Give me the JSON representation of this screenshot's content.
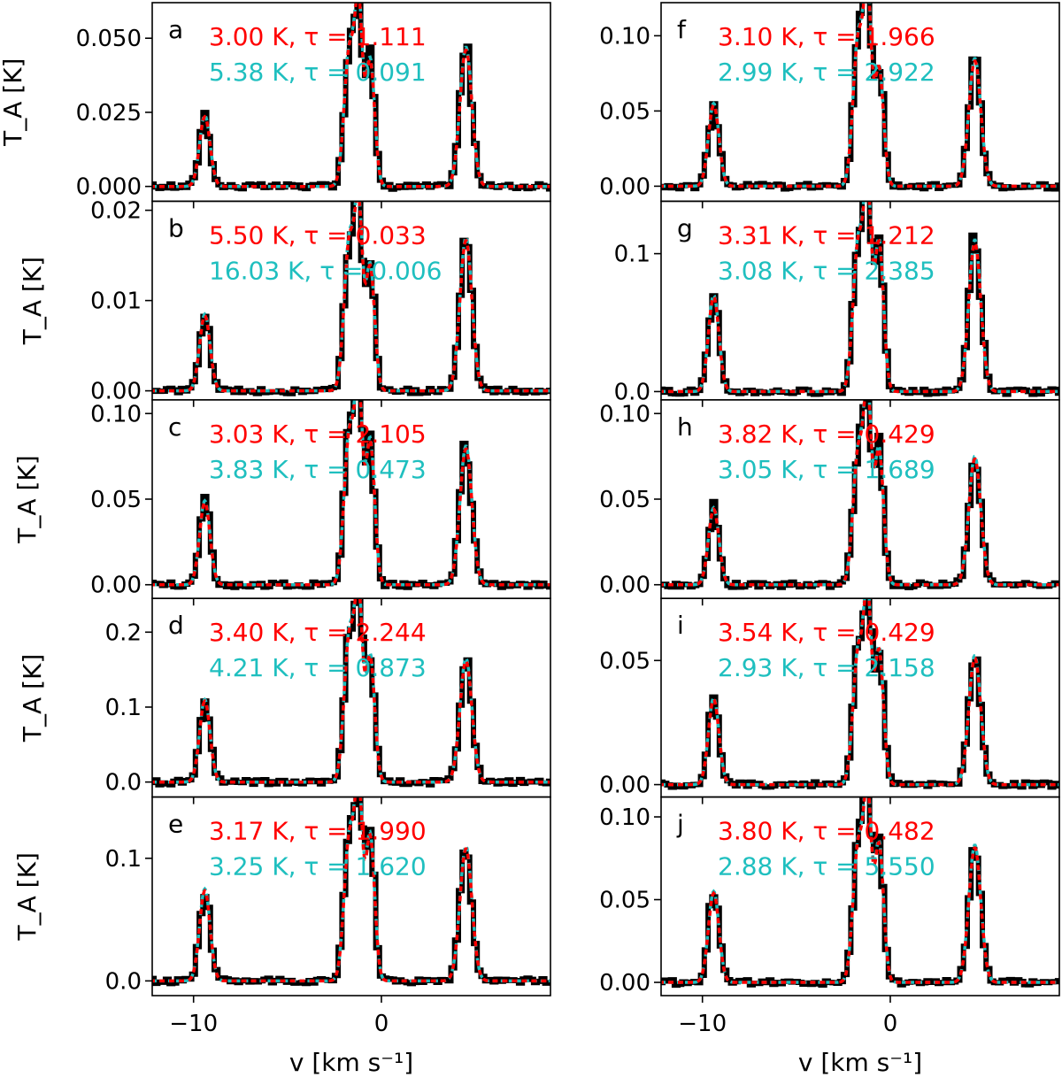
{
  "figure": {
    "colors": {
      "observed": "#000000",
      "model_red": "#ff0000",
      "model_cyan": "#1fbfbf"
    },
    "xlabel": "v [km s⁻¹]",
    "ylabel": "T_A [K]",
    "xlim": [
      -12.2,
      9.0
    ],
    "x_ticks": [
      -10,
      0
    ],
    "x_tick_labels": [
      "−10",
      "0"
    ]
  },
  "chart_data": [
    {
      "type": "line",
      "panel": "a",
      "column": 0,
      "row": 0,
      "ylim": [
        -0.005,
        0.062
      ],
      "y_ticks": [
        0,
        0.025,
        0.05
      ],
      "y_tick_labels": [
        "0.000",
        "0.025",
        "0.050"
      ],
      "amplitudes": [
        0.024,
        0.047,
        0.055,
        0.043,
        0.047
      ],
      "series": [
        {
          "name": "red",
          "label": "3.00 K,  τ = 1.111",
          "Tex_K": 3.0,
          "tau": 1.111
        },
        {
          "name": "cyan",
          "label": "5.38 K,  τ = 0.091",
          "Tex_K": 5.38,
          "tau": 0.091
        }
      ]
    },
    {
      "type": "line",
      "panel": "b",
      "column": 0,
      "row": 1,
      "ylim": [
        -0.001,
        0.021
      ],
      "y_ticks": [
        0,
        0.01,
        0.02
      ],
      "y_tick_labels": [
        "0.00",
        "0.01",
        "0.02"
      ],
      "amplitudes": [
        0.0085,
        0.017,
        0.018,
        0.014,
        0.017
      ],
      "series": [
        {
          "name": "red",
          "label": "5.50 K,  τ = 0.033",
          "Tex_K": 5.5,
          "tau": 0.033
        },
        {
          "name": "cyan",
          "label": "16.03 K,  τ = 0.006",
          "Tex_K": 16.03,
          "tau": 0.006
        }
      ]
    },
    {
      "type": "line",
      "panel": "c",
      "column": 0,
      "row": 2,
      "ylim": [
        -0.008,
        0.108
      ],
      "y_ticks": [
        0,
        0.05,
        0.1
      ],
      "y_tick_labels": [
        "0.00",
        "0.05",
        "0.10"
      ],
      "amplitudes": [
        0.049,
        0.09,
        0.1,
        0.085,
        0.081
      ],
      "series": [
        {
          "name": "red",
          "label": "3.03 K,  τ = 2.105",
          "Tex_K": 3.03,
          "tau": 2.105
        },
        {
          "name": "cyan",
          "label": "3.83 K,  τ = 0.473",
          "Tex_K": 3.83,
          "tau": 0.473
        }
      ]
    },
    {
      "type": "line",
      "panel": "d",
      "column": 0,
      "row": 3,
      "ylim": [
        -0.02,
        0.245
      ],
      "y_ticks": [
        0,
        0.1,
        0.2
      ],
      "y_tick_labels": [
        "0.0",
        "0.1",
        "0.2"
      ],
      "amplitudes": [
        0.11,
        0.2,
        0.22,
        0.17,
        0.165
      ],
      "series": [
        {
          "name": "red",
          "label": "3.40 K,  τ = 2.244",
          "Tex_K": 3.4,
          "tau": 2.244
        },
        {
          "name": "cyan",
          "label": "4.21 K,  τ = 0.873",
          "Tex_K": 4.21,
          "tau": 0.873
        }
      ]
    },
    {
      "type": "line",
      "panel": "e",
      "column": 0,
      "row": 4,
      "ylim": [
        -0.012,
        0.15
      ],
      "y_ticks": [
        0,
        0.1
      ],
      "y_tick_labels": [
        "0.0",
        "0.1"
      ],
      "amplitudes": [
        0.075,
        0.12,
        0.14,
        0.12,
        0.11
      ],
      "series": [
        {
          "name": "red",
          "label": "3.17 K,  τ = 1.990",
          "Tex_K": 3.17,
          "tau": 1.99
        },
        {
          "name": "cyan",
          "label": "3.25 K,  τ = 1.620",
          "Tex_K": 3.25,
          "tau": 1.62
        }
      ]
    },
    {
      "type": "line",
      "panel": "f",
      "column": 1,
      "row": 0,
      "ylim": [
        -0.01,
        0.122
      ],
      "y_ticks": [
        0,
        0.05,
        0.1
      ],
      "y_tick_labels": [
        "0.00",
        "0.05",
        "0.10"
      ],
      "amplitudes": [
        0.055,
        0.1,
        0.115,
        0.08,
        0.085
      ],
      "series": [
        {
          "name": "red",
          "label": "3.10 K,  τ = 1.966",
          "Tex_K": 3.1,
          "tau": 1.966
        },
        {
          "name": "cyan",
          "label": "2.99 K,  τ = 2.922",
          "Tex_K": 2.99,
          "tau": 2.922
        }
      ]
    },
    {
      "type": "line",
      "panel": "g",
      "column": 1,
      "row": 1,
      "ylim": [
        -0.006,
        0.138
      ],
      "y_ticks": [
        0,
        0.1
      ],
      "y_tick_labels": [
        "0.0",
        "0.1"
      ],
      "amplitudes": [
        0.07,
        0.11,
        0.13,
        0.11,
        0.11
      ],
      "series": [
        {
          "name": "red",
          "label": "3.31 K,  τ = 1.212",
          "Tex_K": 3.31,
          "tau": 1.212
        },
        {
          "name": "cyan",
          "label": "3.08 K,  τ = 2.385",
          "Tex_K": 3.08,
          "tau": 2.385
        }
      ]
    },
    {
      "type": "line",
      "panel": "h",
      "column": 1,
      "row": 2,
      "ylim": [
        -0.008,
        0.108
      ],
      "y_ticks": [
        0,
        0.05,
        0.1
      ],
      "y_tick_labels": [
        "0.00",
        "0.05",
        "0.10"
      ],
      "amplitudes": [
        0.045,
        0.08,
        0.1,
        0.08,
        0.075
      ],
      "series": [
        {
          "name": "red",
          "label": "3.82 K,  τ = 0.429",
          "Tex_K": 3.82,
          "tau": 0.429
        },
        {
          "name": "cyan",
          "label": "3.05 K,  τ = 1.689",
          "Tex_K": 3.05,
          "tau": 1.689
        }
      ]
    },
    {
      "type": "line",
      "panel": "i",
      "column": 1,
      "row": 3,
      "ylim": [
        -0.005,
        0.075
      ],
      "y_ticks": [
        0,
        0.05
      ],
      "y_tick_labels": [
        "0.00",
        "0.05"
      ],
      "amplitudes": [
        0.035,
        0.055,
        0.068,
        0.055,
        0.052
      ],
      "series": [
        {
          "name": "red",
          "label": "3.54 K,  τ = 0.429",
          "Tex_K": 3.54,
          "tau": 0.429
        },
        {
          "name": "cyan",
          "label": "2.93 K,  τ = 2.158",
          "Tex_K": 2.93,
          "tau": 2.158
        }
      ]
    },
    {
      "type": "line",
      "panel": "j",
      "column": 1,
      "row": 4,
      "ylim": [
        -0.008,
        0.112
      ],
      "y_ticks": [
        0,
        0.05,
        0.1
      ],
      "y_tick_labels": [
        "0.00",
        "0.05",
        "0.10"
      ],
      "amplitudes": [
        0.055,
        0.085,
        0.102,
        0.085,
        0.083
      ],
      "series": [
        {
          "name": "red",
          "label": "3.80 K,  τ = 0.482",
          "Tex_K": 3.8,
          "tau": 0.482
        },
        {
          "name": "cyan",
          "label": "2.88 K,  τ = 5.550",
          "Tex_K": 2.88,
          "tau": 5.55
        }
      ]
    }
  ]
}
